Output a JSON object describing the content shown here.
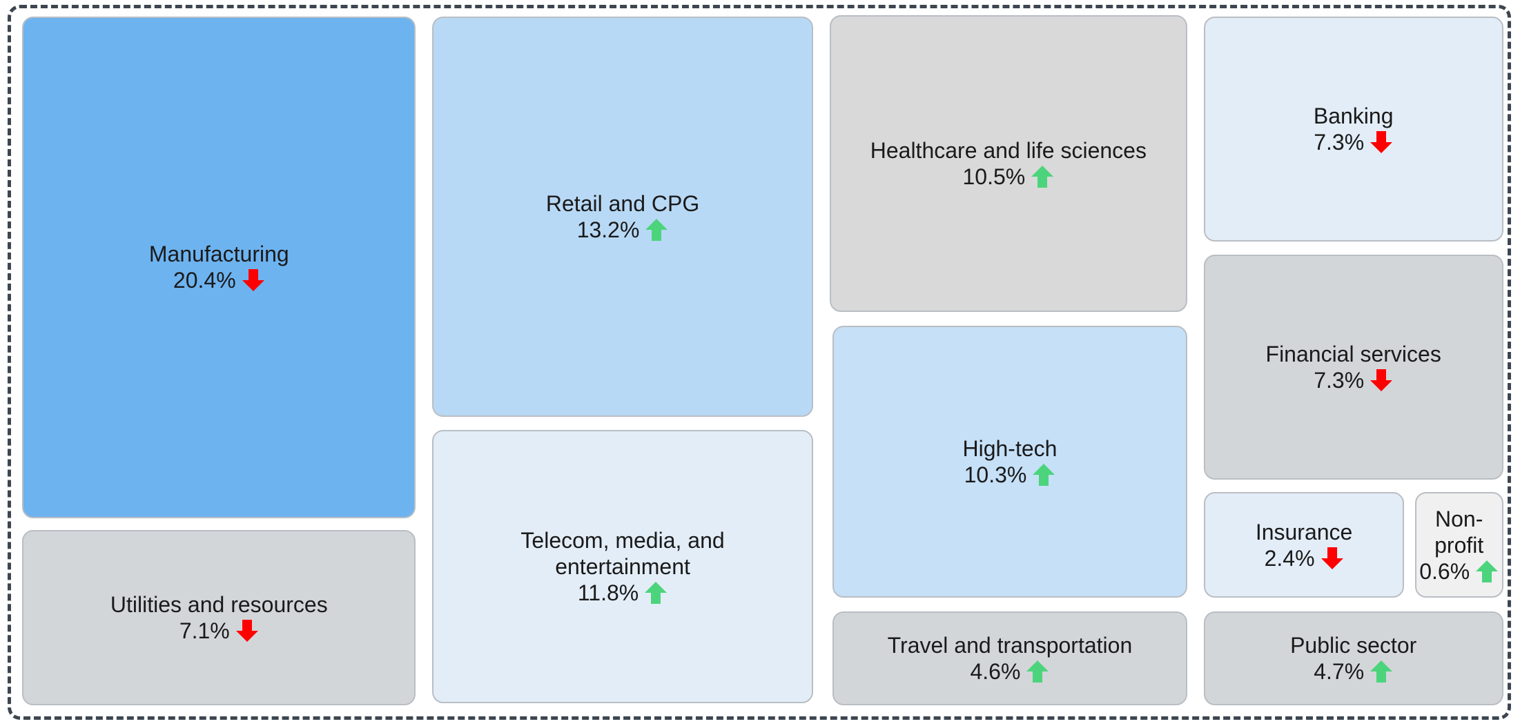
{
  "chart_data": {
    "type": "treemap",
    "categories": [
      "Manufacturing",
      "Utilities and resources",
      "Retail and CPG",
      "Telecom, media, and entertainment",
      "Healthcare and life sciences",
      "High-tech",
      "Travel and transportation",
      "Banking",
      "Financial services",
      "Insurance",
      "Non-profit",
      "Public sector"
    ],
    "values": [
      20.4,
      7.1,
      13.2,
      11.8,
      10.5,
      10.3,
      4.6,
      7.3,
      7.3,
      2.4,
      0.6,
      4.7
    ],
    "value_labels": [
      "20.4%",
      "7.1%",
      "13.2%",
      "11.8%",
      "10.5%",
      "10.3%",
      "4.6%",
      "7.3%",
      "7.3%",
      "2.4%",
      "0.6%",
      "4.7%"
    ],
    "trends": [
      "down",
      "down",
      "up",
      "up",
      "up",
      "up",
      "up",
      "down",
      "down",
      "down",
      "up",
      "up"
    ],
    "colors": [
      "#6db3f0",
      "#d3d6d9",
      "#b8d9f5",
      "#e3edf7",
      "#d9d9d9",
      "#c5e0f7",
      "#d3d6d9",
      "#e3edf7",
      "#d3d6d9",
      "#e3edf7",
      "#f0f0f0",
      "#d3d6d9"
    ],
    "trend_colors": {
      "up": "#4cd47c",
      "down": "#ff0000"
    }
  }
}
